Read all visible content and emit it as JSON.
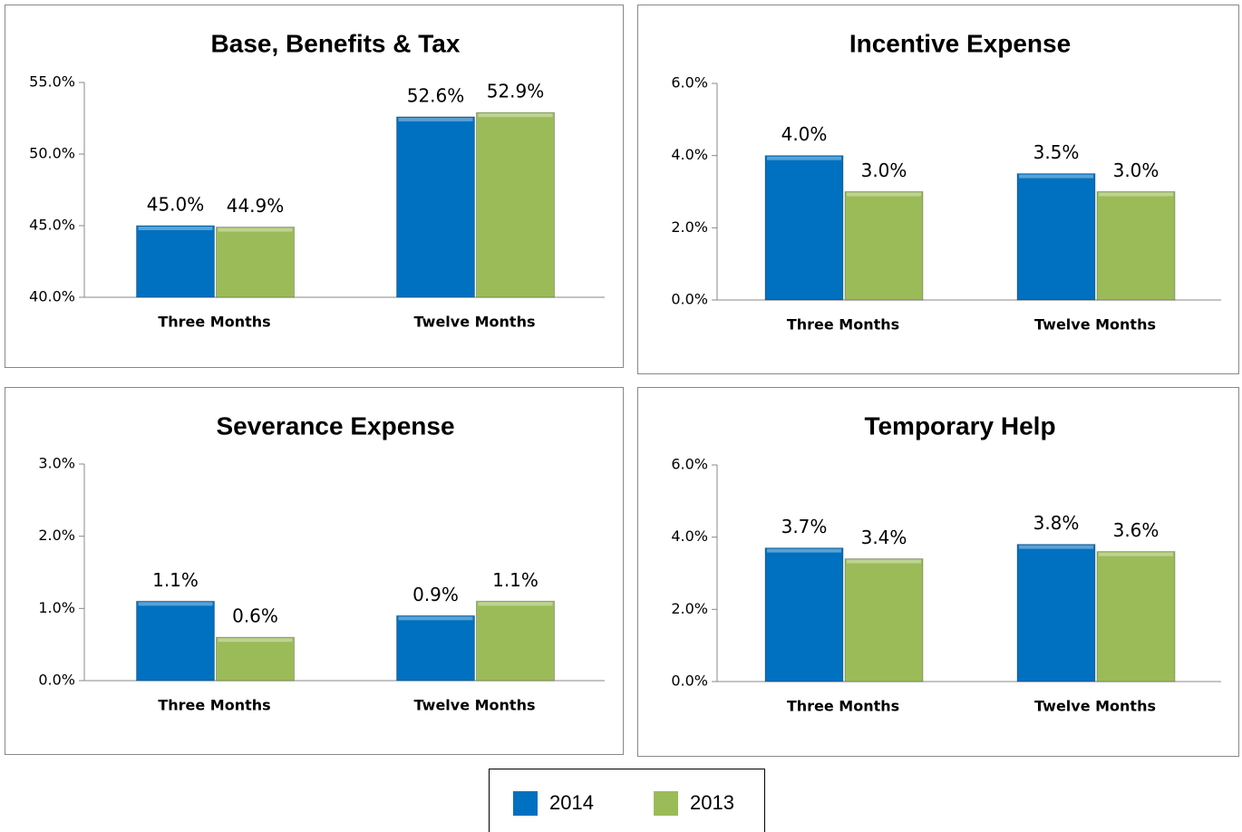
{
  "legend": [
    {
      "name": "2014",
      "color": "#0070c0"
    },
    {
      "name": "2013",
      "color": "#9bbb59"
    }
  ],
  "chart_data": [
    {
      "type": "bar",
      "title": "Base, Benefits & Tax",
      "categories": [
        "Three Months",
        "Twelve Months"
      ],
      "series": [
        {
          "values": [
            45.0,
            52.6
          ],
          "value_labels": [
            "45.0%",
            "52.6%"
          ]
        },
        {
          "values": [
            44.9,
            52.9
          ],
          "value_labels": [
            "44.9%",
            "52.9%"
          ]
        }
      ],
      "ylim": [
        40,
        55
      ],
      "yticks": [
        {
          "value": 40,
          "label": "40.0%"
        },
        {
          "value": 45,
          "label": "45.0%"
        },
        {
          "value": 50,
          "label": "50.0%"
        },
        {
          "value": 55,
          "label": "55.0%"
        }
      ]
    },
    {
      "type": "bar",
      "title": "Incentive Expense",
      "categories": [
        "Three Months",
        "Twelve Months"
      ],
      "series": [
        {
          "values": [
            4.0,
            3.5
          ],
          "value_labels": [
            "4.0%",
            "3.5%"
          ]
        },
        {
          "values": [
            3.0,
            3.0
          ],
          "value_labels": [
            "3.0%",
            "3.0%"
          ]
        }
      ],
      "ylim": [
        0,
        6
      ],
      "yticks": [
        {
          "value": 0,
          "label": "0.0%"
        },
        {
          "value": 2,
          "label": "2.0%"
        },
        {
          "value": 4,
          "label": "4.0%"
        },
        {
          "value": 6,
          "label": "6.0%"
        }
      ]
    },
    {
      "type": "bar",
      "title": "Severance Expense",
      "categories": [
        "Three Months",
        "Twelve Months"
      ],
      "series": [
        {
          "values": [
            1.1,
            0.9
          ],
          "value_labels": [
            "1.1%",
            "0.9%"
          ]
        },
        {
          "values": [
            0.6,
            1.1
          ],
          "value_labels": [
            "0.6%",
            "1.1%"
          ]
        }
      ],
      "ylim": [
        0,
        3
      ],
      "yticks": [
        {
          "value": 0,
          "label": "0.0%"
        },
        {
          "value": 1,
          "label": "1.0%"
        },
        {
          "value": 2,
          "label": "2.0%"
        },
        {
          "value": 3,
          "label": "3.0%"
        }
      ]
    },
    {
      "type": "bar",
      "title": "Temporary Help",
      "categories": [
        "Three Months",
        "Twelve Months"
      ],
      "series": [
        {
          "values": [
            3.7,
            3.8
          ],
          "value_labels": [
            "3.7%",
            "3.8%"
          ]
        },
        {
          "values": [
            3.4,
            3.6
          ],
          "value_labels": [
            "3.4%",
            "3.6%"
          ]
        }
      ],
      "ylim": [
        0,
        6
      ],
      "yticks": [
        {
          "value": 0,
          "label": "0.0%"
        },
        {
          "value": 2,
          "label": "2.0%"
        },
        {
          "value": 4,
          "label": "4.0%"
        },
        {
          "value": 6,
          "label": "6.0%"
        }
      ]
    }
  ]
}
